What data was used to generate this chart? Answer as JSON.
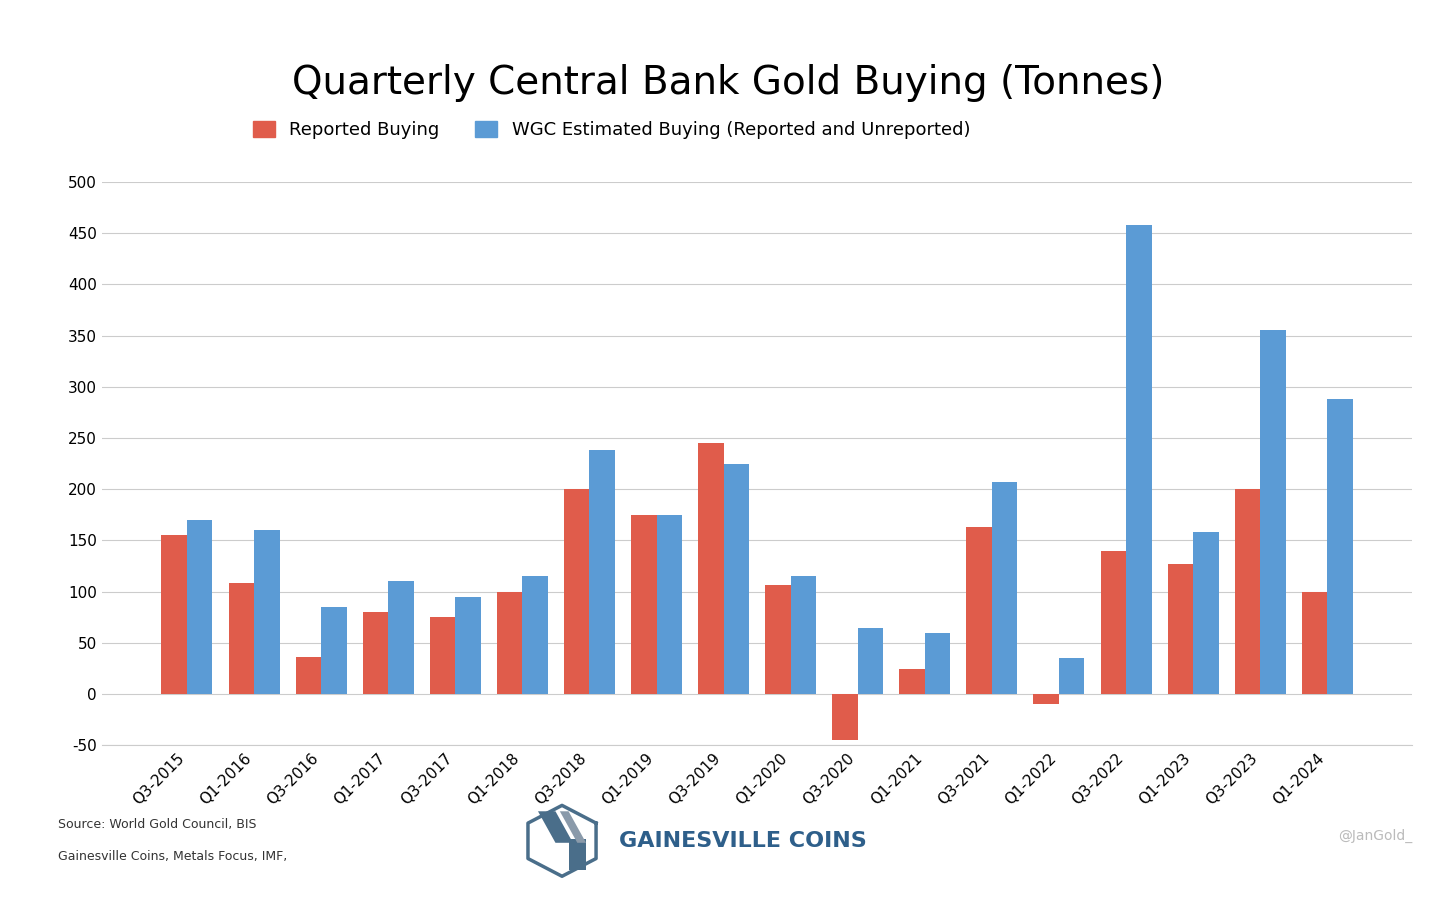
{
  "title": "Quarterly Central Bank Gold Buying (Tonnes)",
  "categories": [
    "Q3-2015",
    "Q1-2016",
    "Q3-2016",
    "Q1-2017",
    "Q3-2017",
    "Q1-2018",
    "Q3-2018",
    "Q1-2019",
    "Q3-2019",
    "Q1-2020",
    "Q3-2020",
    "Q1-2021",
    "Q3-2021",
    "Q1-2022",
    "Q3-2022",
    "Q1-2023",
    "Q3-2023",
    "Q1-2024"
  ],
  "reported": [
    155,
    108,
    36,
    80,
    75,
    100,
    200,
    175,
    245,
    107,
    -45,
    25,
    163,
    -10,
    140,
    127,
    200,
    100
  ],
  "wgc_estimated": [
    170,
    160,
    85,
    110,
    95,
    115,
    238,
    175,
    225,
    115,
    65,
    60,
    207,
    35,
    458,
    158,
    355,
    288
  ],
  "reported_color": "#E05C4B",
  "wgc_color": "#5B9BD5",
  "legend_reported": "Reported Buying",
  "legend_wgc": "WGC Estimated Buying (Reported and Unreported)",
  "ylim_min": -50,
  "ylim_max": 500,
  "yticks": [
    -50,
    0,
    50,
    100,
    150,
    200,
    250,
    300,
    350,
    400,
    450,
    500
  ],
  "background_color": "#FFFFFF",
  "source_line1": "Source: World Gold Council, BIS",
  "source_line2": "Gainesville Coins, Metals Focus, IMF,",
  "watermark": "@JanGold_",
  "bar_width": 0.38,
  "title_fontsize": 28,
  "legend_fontsize": 13,
  "tick_fontsize": 11,
  "gc_text": "GAINESVILLE COINS",
  "gc_text_color": "#2E5F8A",
  "gc_icon_color1": "#4A6E8A",
  "gc_icon_color2": "#8A9AAA"
}
